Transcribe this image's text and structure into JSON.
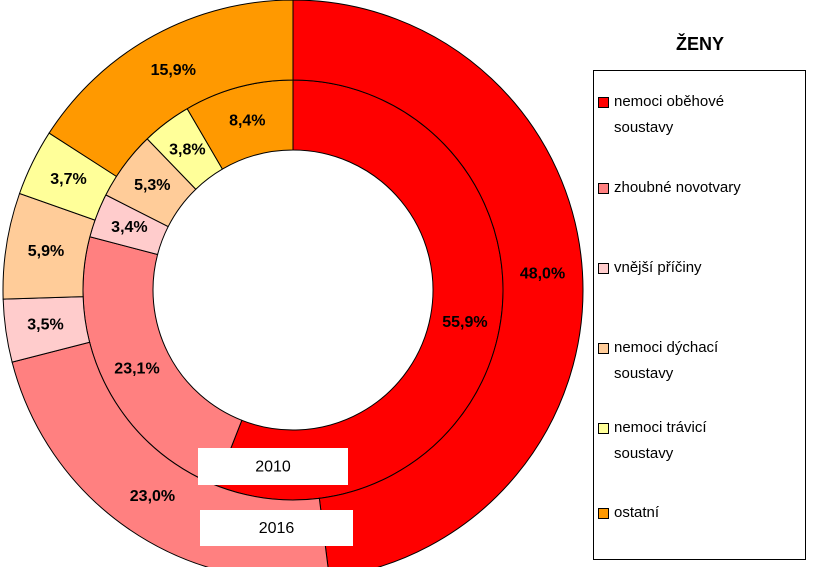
{
  "chart_data": {
    "type": "donut",
    "title": "ŽENY",
    "categories": [
      "nemoci oběhové soustavy",
      "zhoubné novotvary",
      "vnější příčiny",
      "nemoci dýchací soustavy",
      "nemoci trávicí soustavy",
      "ostatní"
    ],
    "colors": [
      "#ff0000",
      "#ff8080",
      "#ffcccc",
      "#ffcc99",
      "#ffff99",
      "#ff9900"
    ],
    "series": [
      {
        "name": "2010",
        "values": [
          55.9,
          23.1,
          3.4,
          5.3,
          3.8,
          8.4
        ],
        "value_labels": [
          "55,9%",
          "23,1%",
          "3,4%",
          "5,3%",
          "3,8%",
          "8,4%"
        ]
      },
      {
        "name": "2016",
        "values": [
          48.0,
          23.0,
          3.5,
          5.9,
          3.7,
          15.9
        ],
        "value_labels": [
          "48,0%",
          "23,0%",
          "3,5%",
          "5,9%",
          "3,7%",
          "15,9%"
        ]
      }
    ]
  }
}
